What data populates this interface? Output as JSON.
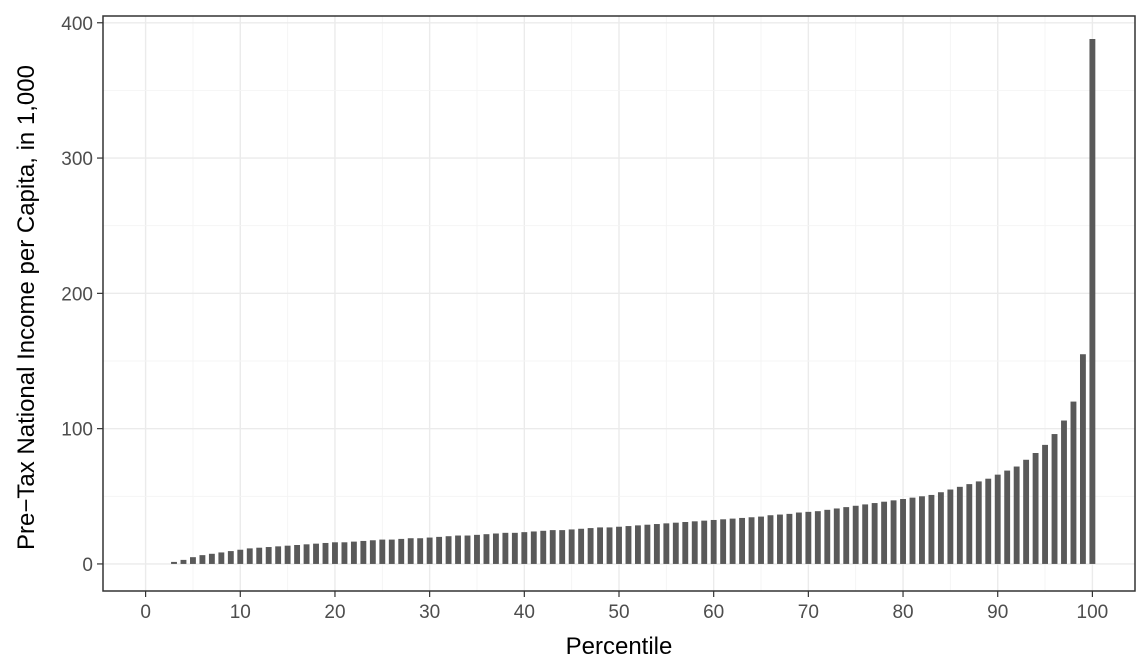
{
  "chart_data": {
    "type": "bar",
    "title": "",
    "xlabel": "Percentile",
    "ylabel": "Pre−Tax National Income per Capita, in 1,000",
    "xlim": [
      -4.5,
      104.5
    ],
    "ylim": [
      -20,
      405
    ],
    "x_ticks": [
      0,
      10,
      20,
      30,
      40,
      50,
      60,
      70,
      80,
      90,
      100
    ],
    "y_ticks": [
      0,
      100,
      200,
      300,
      400
    ],
    "grid": true,
    "colors": {
      "bar": "#595959",
      "grid_major": "#ebebeb",
      "grid_minor": "#f4f4f4",
      "panel_border": "#333333"
    },
    "x": [
      1,
      2,
      3,
      4,
      5,
      6,
      7,
      8,
      9,
      10,
      11,
      12,
      13,
      14,
      15,
      16,
      17,
      18,
      19,
      20,
      21,
      22,
      23,
      24,
      25,
      26,
      27,
      28,
      29,
      30,
      31,
      32,
      33,
      34,
      35,
      36,
      37,
      38,
      39,
      40,
      41,
      42,
      43,
      44,
      45,
      46,
      47,
      48,
      49,
      50,
      51,
      52,
      53,
      54,
      55,
      56,
      57,
      58,
      59,
      60,
      61,
      62,
      63,
      64,
      65,
      66,
      67,
      68,
      69,
      70,
      71,
      72,
      73,
      74,
      75,
      76,
      77,
      78,
      79,
      80,
      81,
      82,
      83,
      84,
      85,
      86,
      87,
      88,
      89,
      90,
      91,
      92,
      93,
      94,
      95,
      96,
      97,
      98,
      99,
      100
    ],
    "values": [
      0,
      0,
      1.5,
      3,
      5,
      6.5,
      7.5,
      8.5,
      9.5,
      10.5,
      11.5,
      12,
      12.5,
      13,
      13.5,
      14,
      14.5,
      15,
      15.5,
      16,
      16,
      16.5,
      17,
      17.5,
      18,
      18,
      18.5,
      19,
      19,
      19.5,
      20,
      20.5,
      21,
      21,
      21.5,
      22,
      22.5,
      23,
      23,
      23.5,
      24,
      24.5,
      25,
      25,
      25.5,
      26,
      26.5,
      27,
      27,
      27.5,
      28,
      28.5,
      29,
      29.5,
      30,
      30.5,
      31,
      31.5,
      32,
      32.5,
      33,
      33.5,
      34,
      34.5,
      35,
      36,
      36.5,
      37,
      38,
      38.5,
      39,
      40,
      41,
      42,
      43,
      44,
      45,
      46,
      47,
      48,
      49,
      50,
      51,
      53,
      55,
      57,
      59,
      61,
      63,
      66,
      69,
      72,
      77,
      82,
      88,
      96,
      106,
      120,
      155,
      388
    ]
  }
}
